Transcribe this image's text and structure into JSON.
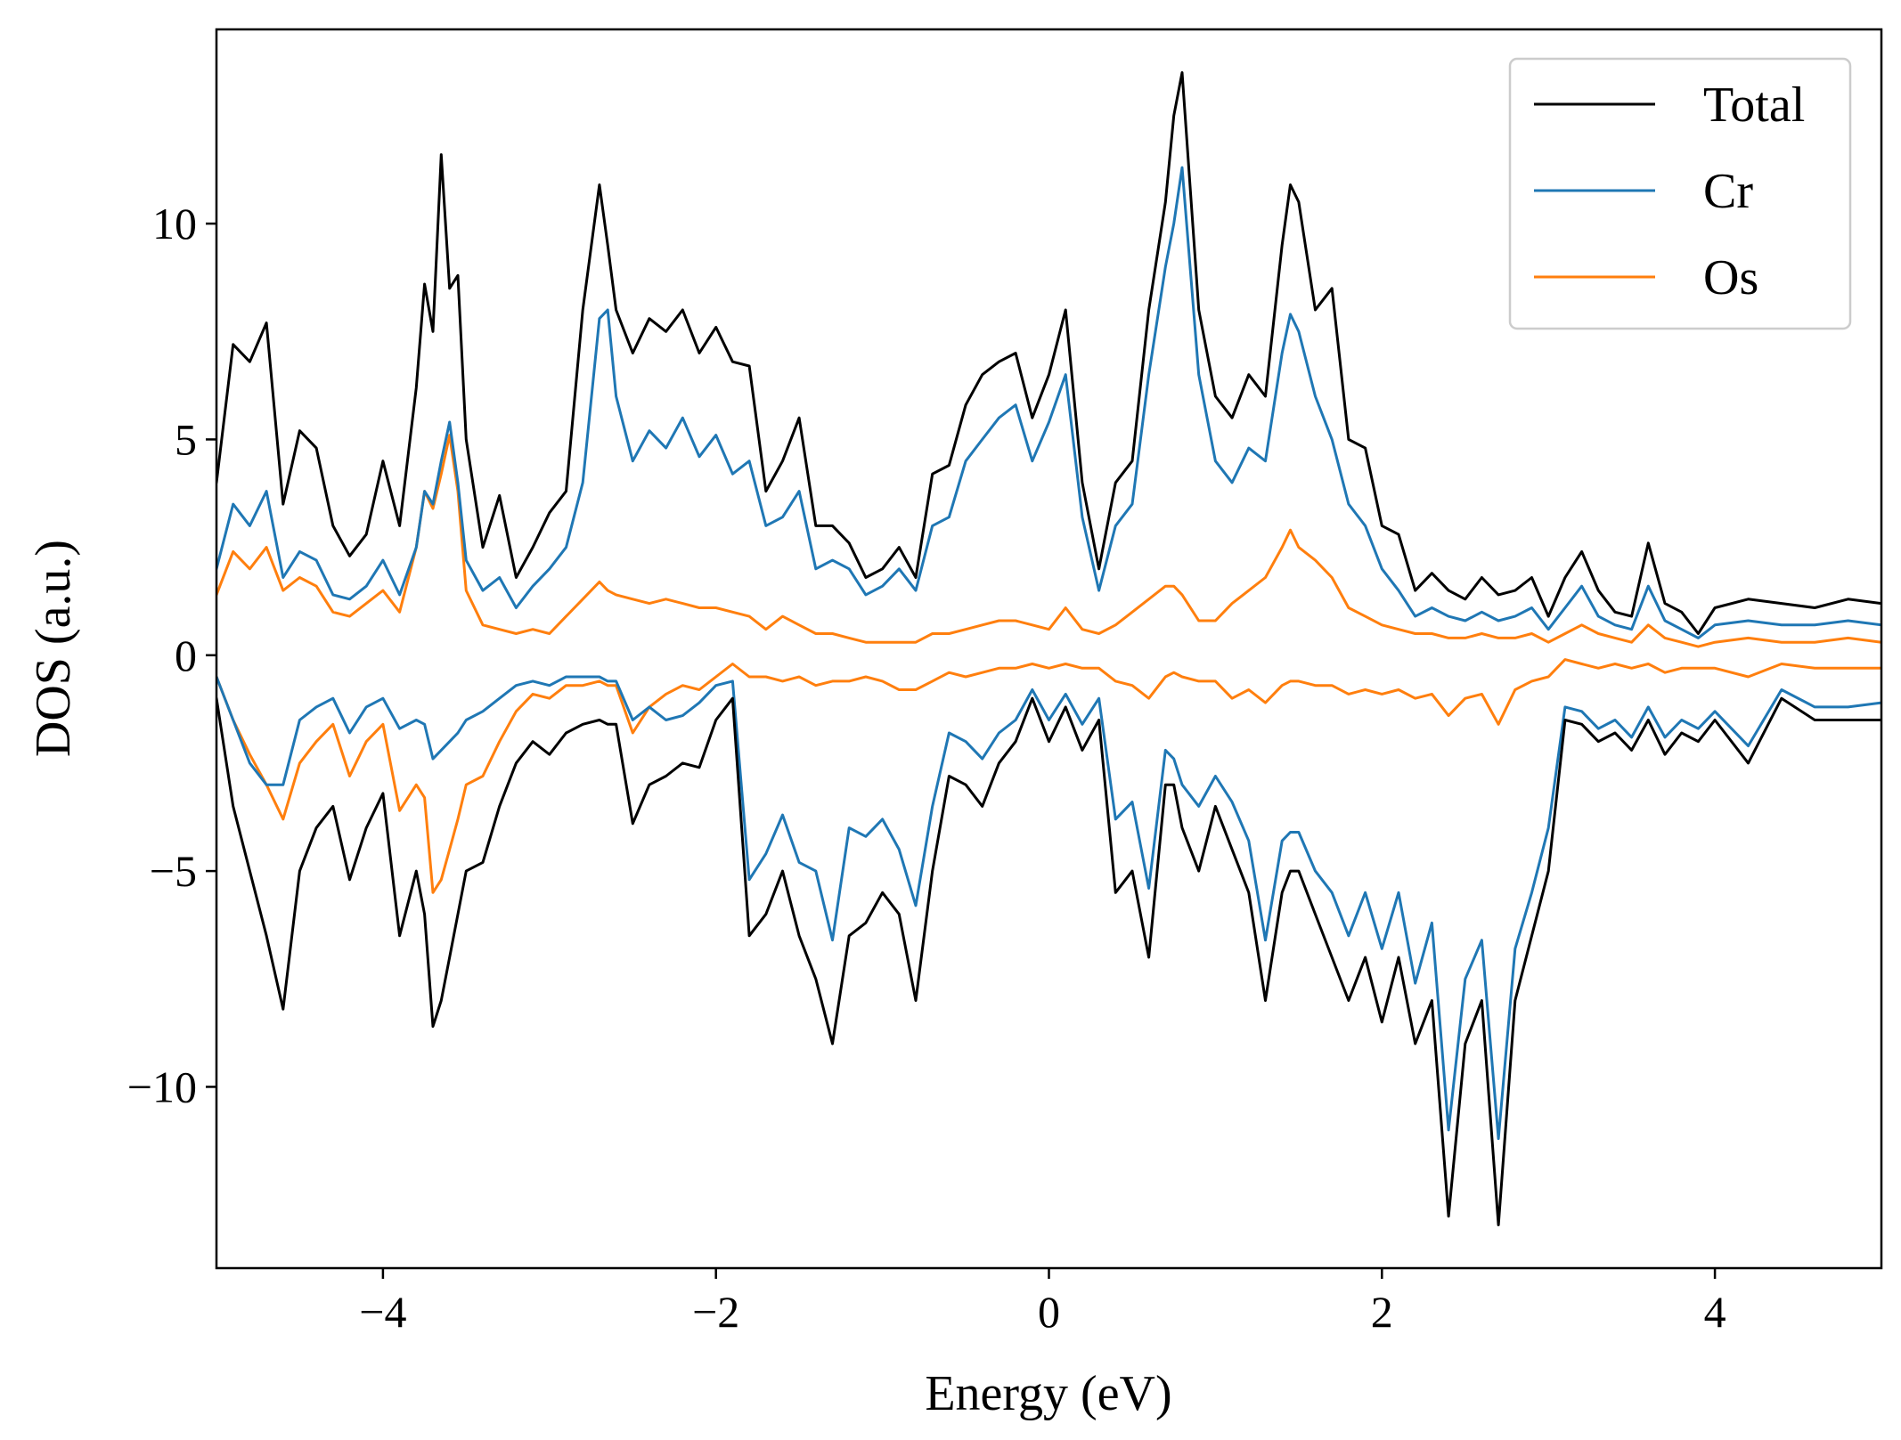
{
  "chart_data": {
    "type": "line",
    "title": "",
    "xlabel": "Energy (eV)",
    "ylabel": "DOS (a.u.)",
    "xlim": [
      -5,
      5
    ],
    "ylim": [
      -14.2,
      14.5
    ],
    "xticks": [
      -4,
      -2,
      0,
      2,
      4
    ],
    "xtick_labels": [
      "−4",
      "−2",
      "0",
      "2",
      "4"
    ],
    "yticks": [
      -10,
      -5,
      0,
      5,
      10
    ],
    "ytick_labels": [
      "−10",
      "−5",
      "0",
      "5",
      "10"
    ],
    "grid": false,
    "legend_position": "top-right",
    "series": [
      {
        "name": "Total",
        "color": "#000000",
        "x": [
          -5.0,
          -4.9,
          -4.8,
          -4.7,
          -4.6,
          -4.5,
          -4.4,
          -4.3,
          -4.2,
          -4.1,
          -4.0,
          -3.9,
          -3.8,
          -3.75,
          -3.7,
          -3.65,
          -3.6,
          -3.55,
          -3.5,
          -3.4,
          -3.3,
          -3.2,
          -3.1,
          -3.0,
          -2.9,
          -2.8,
          -2.7,
          -2.65,
          -2.6,
          -2.5,
          -2.4,
          -2.3,
          -2.2,
          -2.1,
          -2.0,
          -1.9,
          -1.8,
          -1.7,
          -1.6,
          -1.5,
          -1.4,
          -1.3,
          -1.2,
          -1.1,
          -1.0,
          -0.9,
          -0.8,
          -0.7,
          -0.6,
          -0.5,
          -0.4,
          -0.3,
          -0.2,
          -0.1,
          0.0,
          0.1,
          0.2,
          0.3,
          0.4,
          0.5,
          0.6,
          0.7,
          0.75,
          0.8,
          0.9,
          1.0,
          1.1,
          1.2,
          1.3,
          1.4,
          1.45,
          1.5,
          1.6,
          1.7,
          1.8,
          1.9,
          2.0,
          2.1,
          2.2,
          2.3,
          2.4,
          2.5,
          2.6,
          2.7,
          2.8,
          2.9,
          3.0,
          3.1,
          3.2,
          3.3,
          3.4,
          3.5,
          3.6,
          3.7,
          3.8,
          3.9,
          4.0,
          4.2,
          4.4,
          4.6,
          4.8,
          5.0
        ],
        "up": [
          4.0,
          7.2,
          6.8,
          7.7,
          3.5,
          5.2,
          4.8,
          3.0,
          2.3,
          2.8,
          4.5,
          3.0,
          6.2,
          8.6,
          7.5,
          11.6,
          8.5,
          8.8,
          5.0,
          2.5,
          3.7,
          1.8,
          2.5,
          3.3,
          3.8,
          8.0,
          10.9,
          9.5,
          8.0,
          7.0,
          7.8,
          7.5,
          8.0,
          7.0,
          7.6,
          6.8,
          6.7,
          3.8,
          4.5,
          5.5,
          3.0,
          3.0,
          2.6,
          1.8,
          2.0,
          2.5,
          1.8,
          4.2,
          4.4,
          5.8,
          6.5,
          6.8,
          7.0,
          5.5,
          6.5,
          8.0,
          4.0,
          2.0,
          4.0,
          4.5,
          8.0,
          10.5,
          12.5,
          13.5,
          8.0,
          6.0,
          5.5,
          6.5,
          6.0,
          9.5,
          10.9,
          10.5,
          8.0,
          8.5,
          5.0,
          4.8,
          3.0,
          2.8,
          1.5,
          1.9,
          1.5,
          1.3,
          1.8,
          1.4,
          1.5,
          1.8,
          0.9,
          1.8,
          2.4,
          1.5,
          1.0,
          0.9,
          2.6,
          1.2,
          1.0,
          0.5,
          1.1,
          1.3,
          1.2,
          1.1,
          1.3,
          1.2
        ],
        "down": [
          -1.0,
          -3.5,
          -5.0,
          -6.5,
          -8.2,
          -5.0,
          -4.0,
          -3.5,
          -5.2,
          -4.0,
          -3.2,
          -6.5,
          -5.0,
          -6.0,
          -8.6,
          -8.0,
          -7.0,
          -6.0,
          -5.0,
          -4.8,
          -3.5,
          -2.5,
          -2.0,
          -2.3,
          -1.8,
          -1.6,
          -1.5,
          -1.6,
          -1.6,
          -3.9,
          -3.0,
          -2.8,
          -2.5,
          -2.6,
          -1.5,
          -1.0,
          -6.5,
          -6.0,
          -5.0,
          -6.5,
          -7.5,
          -9.0,
          -6.5,
          -6.2,
          -5.5,
          -6.0,
          -8.0,
          -5.0,
          -2.8,
          -3.0,
          -3.5,
          -2.5,
          -2.0,
          -1.0,
          -2.0,
          -1.2,
          -2.2,
          -1.5,
          -5.5,
          -5.0,
          -7.0,
          -3.0,
          -3.0,
          -4.0,
          -5.0,
          -3.5,
          -4.5,
          -5.5,
          -8.0,
          -5.5,
          -5.0,
          -5.0,
          -6.0,
          -7.0,
          -8.0,
          -7.0,
          -8.5,
          -7.0,
          -9.0,
          -8.0,
          -13.0,
          -9.0,
          -8.0,
          -13.2,
          -8.0,
          -6.5,
          -5.0,
          -1.5,
          -1.6,
          -2.0,
          -1.8,
          -2.2,
          -1.5,
          -2.3,
          -1.8,
          -2.0,
          -1.5,
          -2.5,
          -1.0,
          -1.5,
          -1.5,
          -1.5
        ]
      },
      {
        "name": "Cr",
        "color": "#1f77b4",
        "x": [
          -5.0,
          -4.9,
          -4.8,
          -4.7,
          -4.6,
          -4.5,
          -4.4,
          -4.3,
          -4.2,
          -4.1,
          -4.0,
          -3.9,
          -3.8,
          -3.75,
          -3.7,
          -3.65,
          -3.6,
          -3.55,
          -3.5,
          -3.4,
          -3.3,
          -3.2,
          -3.1,
          -3.0,
          -2.9,
          -2.8,
          -2.7,
          -2.65,
          -2.6,
          -2.5,
          -2.4,
          -2.3,
          -2.2,
          -2.1,
          -2.0,
          -1.9,
          -1.8,
          -1.7,
          -1.6,
          -1.5,
          -1.4,
          -1.3,
          -1.2,
          -1.1,
          -1.0,
          -0.9,
          -0.8,
          -0.7,
          -0.6,
          -0.5,
          -0.4,
          -0.3,
          -0.2,
          -0.1,
          0.0,
          0.1,
          0.2,
          0.3,
          0.4,
          0.5,
          0.6,
          0.7,
          0.75,
          0.8,
          0.9,
          1.0,
          1.1,
          1.2,
          1.3,
          1.4,
          1.45,
          1.5,
          1.6,
          1.7,
          1.8,
          1.9,
          2.0,
          2.1,
          2.2,
          2.3,
          2.4,
          2.5,
          2.6,
          2.7,
          2.8,
          2.9,
          3.0,
          3.1,
          3.2,
          3.3,
          3.4,
          3.5,
          3.6,
          3.7,
          3.8,
          3.9,
          4.0,
          4.2,
          4.4,
          4.6,
          4.8,
          5.0
        ],
        "up": [
          2.0,
          3.5,
          3.0,
          3.8,
          1.8,
          2.4,
          2.2,
          1.4,
          1.3,
          1.6,
          2.2,
          1.4,
          2.5,
          3.8,
          3.5,
          4.5,
          5.4,
          4.0,
          2.2,
          1.5,
          1.8,
          1.1,
          1.6,
          2.0,
          2.5,
          4.0,
          7.8,
          8.0,
          6.0,
          4.5,
          5.2,
          4.8,
          5.5,
          4.6,
          5.1,
          4.2,
          4.5,
          3.0,
          3.2,
          3.8,
          2.0,
          2.2,
          2.0,
          1.4,
          1.6,
          2.0,
          1.5,
          3.0,
          3.2,
          4.5,
          5.0,
          5.5,
          5.8,
          4.5,
          5.4,
          6.5,
          3.2,
          1.5,
          3.0,
          3.5,
          6.5,
          9.0,
          10.0,
          11.3,
          6.5,
          4.5,
          4.0,
          4.8,
          4.5,
          7.0,
          7.9,
          7.5,
          6.0,
          5.0,
          3.5,
          3.0,
          2.0,
          1.5,
          0.9,
          1.1,
          0.9,
          0.8,
          1.0,
          0.8,
          0.9,
          1.1,
          0.6,
          1.1,
          1.6,
          0.9,
          0.7,
          0.6,
          1.6,
          0.8,
          0.6,
          0.4,
          0.7,
          0.8,
          0.7,
          0.7,
          0.8,
          0.7
        ],
        "down": [
          -0.5,
          -1.5,
          -2.5,
          -3.0,
          -3.0,
          -1.5,
          -1.2,
          -1.0,
          -1.8,
          -1.2,
          -1.0,
          -1.7,
          -1.5,
          -1.6,
          -2.4,
          -2.2,
          -2.0,
          -1.8,
          -1.5,
          -1.3,
          -1.0,
          -0.7,
          -0.6,
          -0.7,
          -0.5,
          -0.5,
          -0.5,
          -0.6,
          -0.6,
          -1.5,
          -1.2,
          -1.5,
          -1.4,
          -1.1,
          -0.7,
          -0.6,
          -5.2,
          -4.6,
          -3.7,
          -4.8,
          -5.0,
          -6.6,
          -4.0,
          -4.2,
          -3.8,
          -4.5,
          -5.8,
          -3.5,
          -1.8,
          -2.0,
          -2.4,
          -1.8,
          -1.5,
          -0.8,
          -1.5,
          -0.9,
          -1.6,
          -1.0,
          -3.8,
          -3.4,
          -5.4,
          -2.2,
          -2.4,
          -3.0,
          -3.5,
          -2.8,
          -3.4,
          -4.3,
          -6.6,
          -4.3,
          -4.1,
          -4.1,
          -5.0,
          -5.5,
          -6.5,
          -5.5,
          -6.8,
          -5.5,
          -7.6,
          -6.2,
          -11.0,
          -7.5,
          -6.6,
          -11.2,
          -6.8,
          -5.5,
          -4.0,
          -1.2,
          -1.3,
          -1.7,
          -1.5,
          -1.9,
          -1.2,
          -1.9,
          -1.5,
          -1.7,
          -1.3,
          -2.1,
          -0.8,
          -1.2,
          -1.2,
          -1.1
        ]
      },
      {
        "name": "Os",
        "color": "#ff7f0e",
        "x": [
          -5.0,
          -4.9,
          -4.8,
          -4.7,
          -4.6,
          -4.5,
          -4.4,
          -4.3,
          -4.2,
          -4.1,
          -4.0,
          -3.9,
          -3.8,
          -3.75,
          -3.7,
          -3.65,
          -3.6,
          -3.55,
          -3.5,
          -3.4,
          -3.3,
          -3.2,
          -3.1,
          -3.0,
          -2.9,
          -2.8,
          -2.7,
          -2.65,
          -2.6,
          -2.5,
          -2.4,
          -2.3,
          -2.2,
          -2.1,
          -2.0,
          -1.9,
          -1.8,
          -1.7,
          -1.6,
          -1.5,
          -1.4,
          -1.3,
          -1.2,
          -1.1,
          -1.0,
          -0.9,
          -0.8,
          -0.7,
          -0.6,
          -0.5,
          -0.4,
          -0.3,
          -0.2,
          -0.1,
          0.0,
          0.1,
          0.2,
          0.3,
          0.4,
          0.5,
          0.6,
          0.7,
          0.75,
          0.8,
          0.9,
          1.0,
          1.1,
          1.2,
          1.3,
          1.4,
          1.45,
          1.5,
          1.6,
          1.7,
          1.8,
          1.9,
          2.0,
          2.1,
          2.2,
          2.3,
          2.4,
          2.5,
          2.6,
          2.7,
          2.8,
          2.9,
          3.0,
          3.1,
          3.2,
          3.3,
          3.4,
          3.5,
          3.6,
          3.7,
          3.8,
          3.9,
          4.0,
          4.2,
          4.4,
          4.6,
          4.8,
          5.0
        ],
        "up": [
          1.4,
          2.4,
          2.0,
          2.5,
          1.5,
          1.8,
          1.6,
          1.0,
          0.9,
          1.2,
          1.5,
          1.0,
          2.5,
          3.8,
          3.4,
          4.2,
          5.1,
          3.8,
          1.5,
          0.7,
          0.6,
          0.5,
          0.6,
          0.5,
          0.9,
          1.3,
          1.7,
          1.5,
          1.4,
          1.3,
          1.2,
          1.3,
          1.2,
          1.1,
          1.1,
          1.0,
          0.9,
          0.6,
          0.9,
          0.7,
          0.5,
          0.5,
          0.4,
          0.3,
          0.3,
          0.3,
          0.3,
          0.5,
          0.5,
          0.6,
          0.7,
          0.8,
          0.8,
          0.7,
          0.6,
          1.1,
          0.6,
          0.5,
          0.7,
          1.0,
          1.3,
          1.6,
          1.6,
          1.4,
          0.8,
          0.8,
          1.2,
          1.5,
          1.8,
          2.5,
          2.9,
          2.5,
          2.2,
          1.8,
          1.1,
          0.9,
          0.7,
          0.6,
          0.5,
          0.5,
          0.4,
          0.4,
          0.5,
          0.4,
          0.4,
          0.5,
          0.3,
          0.5,
          0.7,
          0.5,
          0.4,
          0.3,
          0.7,
          0.4,
          0.3,
          0.2,
          0.3,
          0.4,
          0.3,
          0.3,
          0.4,
          0.3
        ],
        "down": [
          -0.5,
          -1.5,
          -2.3,
          -3.0,
          -3.8,
          -2.5,
          -2.0,
          -1.6,
          -2.8,
          -2.0,
          -1.6,
          -3.6,
          -3.0,
          -3.3,
          -5.5,
          -5.2,
          -4.5,
          -3.8,
          -3.0,
          -2.8,
          -2.0,
          -1.3,
          -0.9,
          -1.0,
          -0.7,
          -0.7,
          -0.6,
          -0.7,
          -0.7,
          -1.8,
          -1.2,
          -0.9,
          -0.7,
          -0.8,
          -0.5,
          -0.2,
          -0.5,
          -0.5,
          -0.6,
          -0.5,
          -0.7,
          -0.6,
          -0.6,
          -0.5,
          -0.6,
          -0.8,
          -0.8,
          -0.6,
          -0.4,
          -0.5,
          -0.4,
          -0.3,
          -0.3,
          -0.2,
          -0.3,
          -0.2,
          -0.3,
          -0.3,
          -0.6,
          -0.7,
          -1.0,
          -0.5,
          -0.4,
          -0.5,
          -0.6,
          -0.6,
          -1.0,
          -0.8,
          -1.1,
          -0.7,
          -0.6,
          -0.6,
          -0.7,
          -0.7,
          -0.9,
          -0.8,
          -0.9,
          -0.8,
          -1.0,
          -0.9,
          -1.4,
          -1.0,
          -0.9,
          -1.6,
          -0.8,
          -0.6,
          -0.5,
          -0.1,
          -0.2,
          -0.3,
          -0.2,
          -0.3,
          -0.2,
          -0.4,
          -0.3,
          -0.3,
          -0.3,
          -0.5,
          -0.2,
          -0.3,
          -0.3,
          -0.3
        ]
      }
    ]
  }
}
